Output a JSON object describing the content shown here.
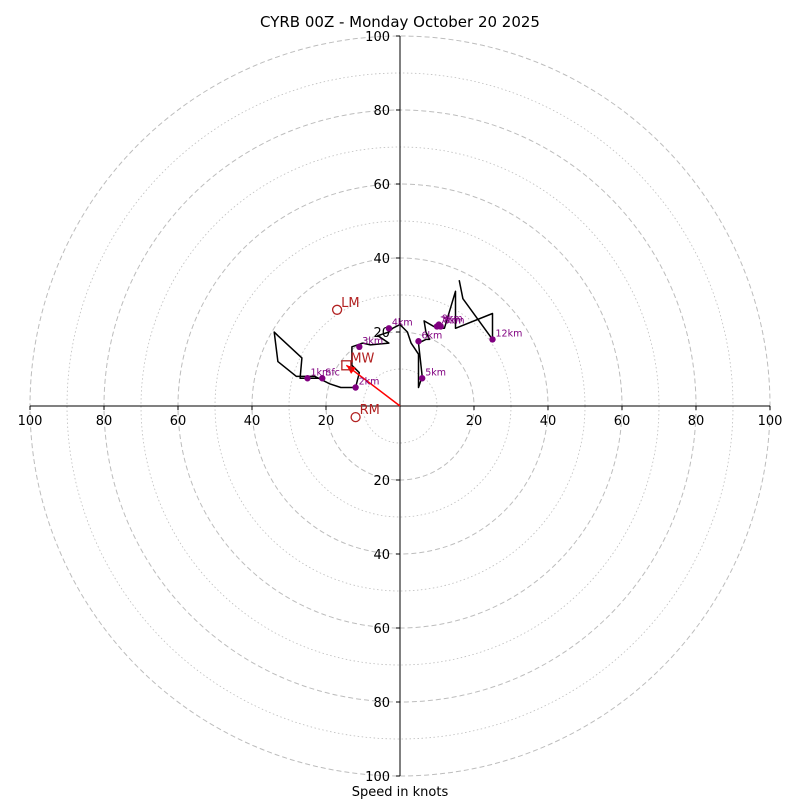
{
  "chart_data": {
    "type": "hodograph",
    "title": "CYRB 00Z - Monday October 20 2025",
    "xlabel": "Speed in knots",
    "ylabel": "",
    "xlim": [
      -100,
      100
    ],
    "ylim": [
      -100,
      100
    ],
    "axis_tick_values": [
      20,
      40,
      60,
      80,
      100
    ],
    "axis_tick_labels": [
      "20",
      "40",
      "60",
      "80",
      "100"
    ],
    "dashed_rings_kt": [
      20,
      40,
      60,
      80,
      100
    ],
    "dotted_rings_kt": [
      10,
      30,
      50,
      70,
      90
    ],
    "colors": {
      "rings": "#bdbdbd",
      "trace": "#000000",
      "height_markers": "#800080",
      "storm_markers": "#b22222",
      "shear_vector": "#ff0000",
      "axes": "#000000"
    },
    "hodograph_trace": [
      {
        "u": -21,
        "v": 7.5
      },
      {
        "u": -25,
        "v": 7.5
      },
      {
        "u": -27,
        "v": 7.5
      },
      {
        "u": -26.5,
        "v": 13
      },
      {
        "u": -33,
        "v": 19
      },
      {
        "u": -34,
        "v": 20
      },
      {
        "u": -33,
        "v": 12
      },
      {
        "u": -28,
        "v": 8
      },
      {
        "u": -23,
        "v": 8
      },
      {
        "u": -19,
        "v": 6
      },
      {
        "u": -16,
        "v": 5
      },
      {
        "u": -12,
        "v": 5
      },
      {
        "u": -11,
        "v": 9
      },
      {
        "u": -13,
        "v": 11
      },
      {
        "u": -13,
        "v": 16
      },
      {
        "u": -10,
        "v": 17
      },
      {
        "u": -8,
        "v": 16.5
      },
      {
        "u": -3,
        "v": 17
      },
      {
        "u": -6,
        "v": 19
      },
      {
        "u": -3,
        "v": 20
      },
      {
        "u": -2,
        "v": 21
      },
      {
        "u": 0,
        "v": 22
      },
      {
        "u": 2,
        "v": 20
      },
      {
        "u": 3,
        "v": 17
      },
      {
        "u": 5,
        "v": 14
      },
      {
        "u": 5,
        "v": 5
      },
      {
        "u": 6,
        "v": 8
      },
      {
        "u": 5,
        "v": 17
      },
      {
        "u": 7,
        "v": 18
      },
      {
        "u": 8,
        "v": 18
      },
      {
        "u": 7,
        "v": 20
      },
      {
        "u": 6.5,
        "v": 23
      },
      {
        "u": 10,
        "v": 21
      },
      {
        "u": 12,
        "v": 21
      },
      {
        "u": 15,
        "v": 31
      },
      {
        "u": 15,
        "v": 21
      },
      {
        "u": 25,
        "v": 25
      },
      {
        "u": 25,
        "v": 18
      },
      {
        "u": 17,
        "v": 29
      },
      {
        "u": 16,
        "v": 34
      }
    ],
    "height_markers": [
      {
        "label": "1km",
        "u": -25,
        "v": 7.5
      },
      {
        "label": "Sfc",
        "u": -21,
        "v": 7.5
      },
      {
        "label": "2km",
        "u": -12,
        "v": 5
      },
      {
        "label": "3km",
        "u": -11,
        "v": 16
      },
      {
        "label": "4km",
        "u": -3,
        "v": 21
      },
      {
        "label": "5km",
        "u": 6,
        "v": 7.5
      },
      {
        "label": "6km",
        "u": 5,
        "v": 17.5
      },
      {
        "label": "7km",
        "u": 10,
        "v": 21.5
      },
      {
        "label": "8km",
        "u": 11,
        "v": 21.5
      },
      {
        "label": "9km",
        "u": 10.5,
        "v": 22
      },
      {
        "label": "12km",
        "u": 25,
        "v": 18
      }
    ],
    "storm_motion_markers": [
      {
        "label": "LM",
        "u": -17,
        "v": 26,
        "marker": "circle"
      },
      {
        "label": "MW",
        "u": -14.5,
        "v": 11,
        "marker": "square"
      },
      {
        "label": "RM",
        "u": -12,
        "v": -3,
        "marker": "circle"
      }
    ],
    "shear_vector": {
      "from_u": 0,
      "from_v": 0,
      "to_u": -14.5,
      "to_v": 11
    }
  }
}
